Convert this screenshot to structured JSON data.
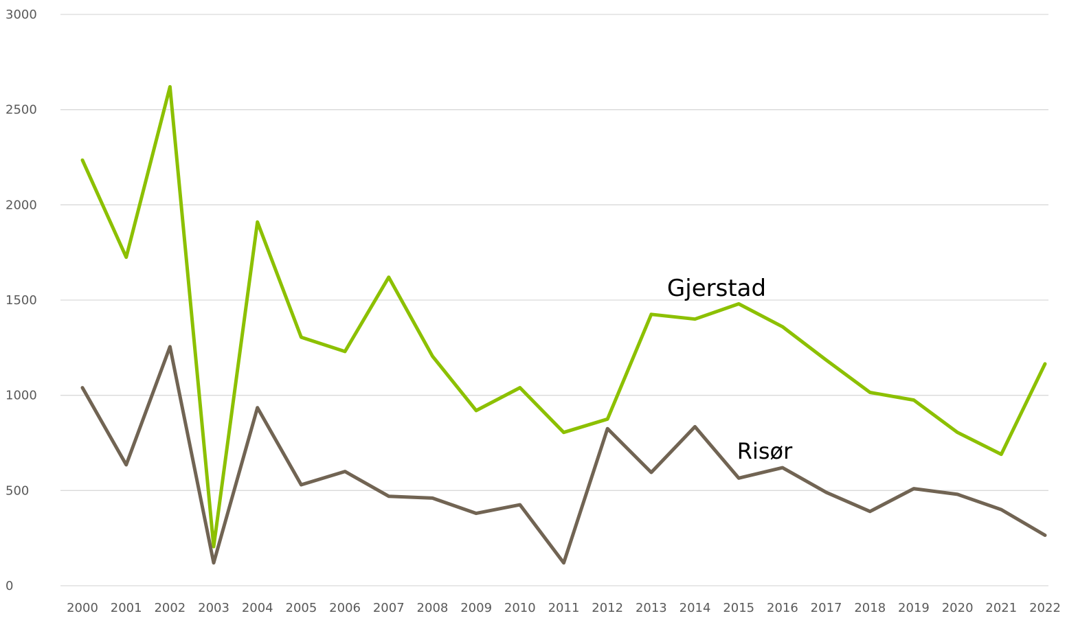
{
  "chart_data": {
    "type": "line",
    "title": "",
    "xlabel": "",
    "ylabel": "",
    "x": [
      "2000",
      "2001",
      "2002",
      "2003",
      "2004",
      "2005",
      "2006",
      "2007",
      "2008",
      "2009",
      "2010",
      "2011",
      "2012",
      "2013",
      "2014",
      "2015",
      "2016",
      "2017",
      "2018",
      "2019",
      "2020",
      "2021",
      "2022"
    ],
    "ylim": [
      0,
      3000
    ],
    "yticks": [
      "0",
      "500",
      "1000",
      "1500",
      "2000",
      "2500",
      "3000"
    ],
    "grid": true,
    "legend": "inline-labels",
    "series": [
      {
        "name": "Gjerstad",
        "color": "#8CC000",
        "values": [
          2235,
          1725,
          2620,
          205,
          1910,
          1305,
          1230,
          1620,
          1205,
          920,
          1040,
          805,
          875,
          1425,
          1400,
          1480,
          1360,
          1185,
          1015,
          975,
          805,
          690,
          1165
        ]
      },
      {
        "name": "Risør",
        "color": "#716453",
        "values": [
          1040,
          635,
          1255,
          120,
          935,
          530,
          600,
          470,
          460,
          380,
          425,
          120,
          825,
          595,
          835,
          565,
          620,
          490,
          390,
          510,
          480,
          400,
          265
        ]
      }
    ],
    "colors": {
      "grid": "#D9D9D9",
      "tick_text": "#595959",
      "label_text": "#000000"
    }
  }
}
